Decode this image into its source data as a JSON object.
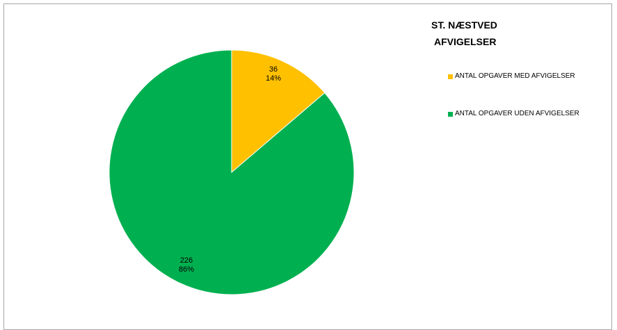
{
  "chart_data": {
    "type": "pie",
    "title_lines": [
      "ST. NÆSTVED",
      "AFVIGELSER"
    ],
    "legend_position": "right",
    "slices": [
      {
        "name": "ANTAL OPGAVER MED AFVIGELSER",
        "value": 36,
        "value_label": "36",
        "percent_label": "14%",
        "color": "#ffc000"
      },
      {
        "name": "ANTAL OPGAVER UDEN AFVIGELSER",
        "value": 226,
        "value_label": "226",
        "percent_label": "86%",
        "color": "#00b050"
      }
    ]
  }
}
